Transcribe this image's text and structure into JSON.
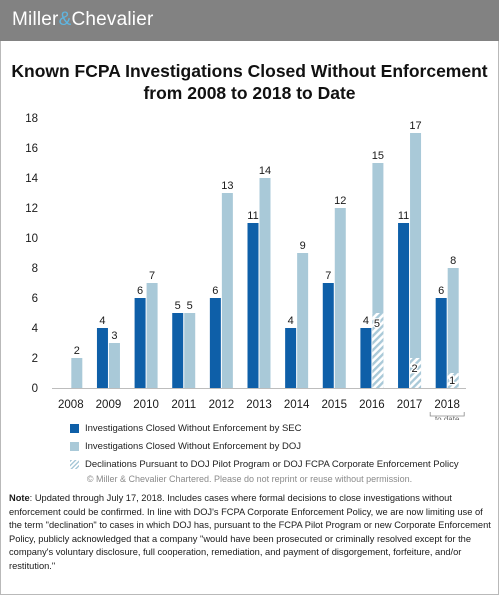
{
  "brand": {
    "name_part1": "Miller",
    "name_amp": "&",
    "name_part2": "Chevalier"
  },
  "title_line1": "Known FCPA Investigations Closed Without Enforcement",
  "title_line2": "from 2008 to 2018 to Date",
  "to_date_label": "to date",
  "legend": [
    {
      "label": "Investigations Closed Without Enforcement by SEC",
      "style": "solid-dark"
    },
    {
      "label": "Investigations Closed Without Enforcement by DOJ",
      "style": "solid-light"
    },
    {
      "label": "Declinations Pursuant to DOJ Pilot Program or DOJ FCPA Corporate Enforcement Policy",
      "style": "hatched"
    }
  ],
  "copyright": "© Miller & Chevalier Chartered. Please do not reprint or reuse without permission.",
  "note": {
    "label": "Note",
    "text": ": Updated through July 17, 2018. Includes cases where formal decisions to close investigations without enforcement could be confirmed. In line with DOJ's FCPA Corporate Enforcement Policy, we are now limiting use of the term \"declination\" to cases in which DOJ has, pursuant to the FCPA Pilot Program or new Corporate Enforcement Policy, publicly acknowledged that a company \"would have been prosecuted or criminally resolved except for the company's voluntary disclosure, full cooperation, remediation, and payment of disgorgement, forfeiture, and/or restitution.\""
  },
  "colors": {
    "sec": "#0e5fa8",
    "doj": "#a9c9d8",
    "header": "#828282",
    "accent": "#5fb5e0"
  },
  "chart_data": {
    "type": "bar",
    "title": "Known FCPA Investigations Closed Without Enforcement from 2008 to 2018 to Date",
    "categories": [
      "2008",
      "2009",
      "2010",
      "2011",
      "2012",
      "2013",
      "2014",
      "2015",
      "2016",
      "2017",
      "2018"
    ],
    "series": [
      {
        "name": "Investigations Closed Without Enforcement by SEC",
        "values": [
          0,
          4,
          6,
          5,
          6,
          11,
          4,
          7,
          4,
          11,
          6
        ]
      },
      {
        "name": "Investigations Closed Without Enforcement by DOJ",
        "values": [
          2,
          3,
          7,
          5,
          13,
          14,
          9,
          12,
          15,
          17,
          8
        ]
      },
      {
        "name": "Declinations Pursuant to DOJ Pilot Program or DOJ FCPA Corporate Enforcement Policy",
        "values": [
          0,
          0,
          0,
          0,
          0,
          0,
          0,
          0,
          5,
          2,
          1
        ]
      }
    ],
    "sec_labels": [
      "",
      "4",
      "6",
      "5",
      "6",
      "11",
      "4",
      "7",
      "4",
      "11",
      "6"
    ],
    "doj_labels": [
      "2",
      "3",
      "7",
      "5",
      "13",
      "14",
      "9",
      "12",
      "15",
      "17",
      "8"
    ],
    "declination_labels": [
      "",
      "",
      "",
      "",
      "",
      "",
      "",
      "",
      "5",
      "2",
      "1"
    ],
    "yticks": [
      "0",
      "2",
      "4",
      "6",
      "8",
      "10",
      "12",
      "14",
      "16",
      "18"
    ],
    "ylim": [
      0,
      18
    ],
    "grid": false,
    "legend_position": "bottom"
  }
}
